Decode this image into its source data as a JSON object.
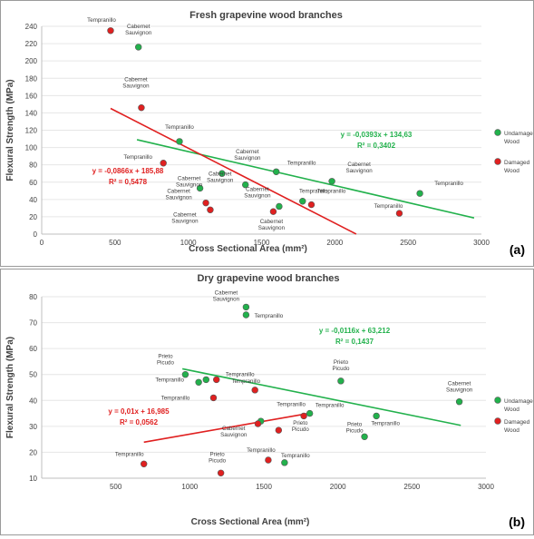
{
  "colors": {
    "undamaged": "#22b14c",
    "damaged": "#e02020",
    "axis": "#bfbfbf",
    "text": "#404040",
    "point_edge": "#555555"
  },
  "chart_data": [
    {
      "type": "scatter",
      "panel_label": "(a)",
      "title": "Fresh grapevine wood branches",
      "xlabel": "Cross Sectional Area (mm²)",
      "ylabel": "Flexural Strength (MPa)",
      "xlim": [
        0,
        3000
      ],
      "ylim": [
        0,
        240
      ],
      "xticks": [
        "0",
        "500",
        "1000",
        "1500",
        "2000",
        "2500",
        "3000"
      ],
      "yticks": [
        "0",
        "20",
        "40",
        "60",
        "80",
        "100",
        "120",
        "140",
        "160",
        "180",
        "200",
        "220",
        "240"
      ],
      "legend": [
        {
          "label": "Undamaged Wood",
          "color": "#22b14c"
        },
        {
          "label": "Damaged Wood",
          "color": "#e02020"
        }
      ],
      "legend_position": "right",
      "series": [
        {
          "name": "Undamaged Wood",
          "color": "#22b14c",
          "points": [
            {
              "x": 660,
              "y": 216,
              "label": "Cabernet Sauvignon"
            },
            {
              "x": 940,
              "y": 107,
              "label": "Tempranillo"
            },
            {
              "x": 1230,
              "y": 70,
              "label": "Cabernet Sauvignon"
            },
            {
              "x": 1080,
              "y": 53,
              "label": "Cabernet Sauvignon"
            },
            {
              "x": 1390,
              "y": 57,
              "label": "Cabernet Sauvignon"
            },
            {
              "x": 1600,
              "y": 72,
              "label": "Tempranillo"
            },
            {
              "x": 1980,
              "y": 61,
              "label": "Cabernet Sauvignon"
            },
            {
              "x": 1620,
              "y": 32,
              "label": "Cabernet Sauvignon"
            },
            {
              "x": 1780,
              "y": 38,
              "label": "Tempranillo"
            },
            {
              "x": 2580,
              "y": 47,
              "label": "Tempranillo"
            }
          ],
          "trendline": {
            "equation": "y = -0,0393x + 134,63",
            "r2": "R² = 0,3402",
            "slope": -0.0393,
            "intercept": 134.63,
            "x_range": [
              650,
              2950
            ]
          }
        },
        {
          "name": "Damaged Wood",
          "color": "#e02020",
          "points": [
            {
              "x": 470,
              "y": 235,
              "label": "Tempranillo"
            },
            {
              "x": 680,
              "y": 146,
              "label": "Cabernet Sauvignon"
            },
            {
              "x": 830,
              "y": 82,
              "label": "Tempranillo"
            },
            {
              "x": 1120,
              "y": 36,
              "label": "Cabernet Sauvignon"
            },
            {
              "x": 1150,
              "y": 28,
              "label": "Cabernet Sauvignon"
            },
            {
              "x": 1580,
              "y": 26,
              "label": "Cabernet Sauvignon"
            },
            {
              "x": 1840,
              "y": 34,
              "label": "Tempranillo"
            },
            {
              "x": 2440,
              "y": 24,
              "label": "Tempranillo"
            }
          ],
          "trendline": {
            "equation": "y = -0,0866x + 185,88",
            "r2": "R² = 0,5478",
            "slope": -0.0866,
            "intercept": 185.88,
            "x_range": [
              470,
              2146
            ]
          }
        }
      ]
    },
    {
      "type": "scatter",
      "panel_label": "(b)",
      "title": "Dry grapevine wood branches",
      "xlabel": "Cross Sectional Area (mm²)",
      "ylabel": "Flexural Strength (MPa)",
      "xlim": [
        0,
        3000
      ],
      "ylim": [
        10,
        80
      ],
      "xticks": [
        "500",
        "1000",
        "1500",
        "2000",
        "2500",
        "3000"
      ],
      "yticks": [
        "10",
        "20",
        "30",
        "40",
        "50",
        "60",
        "70",
        "80"
      ],
      "legend": [
        {
          "label": "Undamaged Wood",
          "color": "#22b14c"
        },
        {
          "label": "Damaged Wood",
          "color": "#e02020"
        }
      ],
      "legend_position": "right",
      "series": [
        {
          "name": "Undamaged Wood",
          "color": "#22b14c",
          "points": [
            {
              "x": 1380,
              "y": 76,
              "label": "Cabernet Sauvignon"
            },
            {
              "x": 1380,
              "y": 73,
              "label": "Tempranillo"
            },
            {
              "x": 970,
              "y": 50,
              "label": "Prieto Picudo"
            },
            {
              "x": 1060,
              "y": 47,
              "label": "Tempranillo"
            },
            {
              "x": 1110,
              "y": 48,
              "label": ""
            },
            {
              "x": 1480,
              "y": 32,
              "label": "Cabernet Sauvignon"
            },
            {
              "x": 1810,
              "y": 35,
              "label": "Tempranillo"
            },
            {
              "x": 2020,
              "y": 47.5,
              "label": "Prieto Picudo"
            },
            {
              "x": 2180,
              "y": 26,
              "label": "Prieto Picudo"
            },
            {
              "x": 2260,
              "y": 34,
              "label": "Tempranillo"
            },
            {
              "x": 2820,
              "y": 39.5,
              "label": "Cabernet Sauvignon"
            },
            {
              "x": 1640,
              "y": 16,
              "label": "Tempranillo"
            }
          ],
          "trendline": {
            "equation": "y = -0,0116x + 63,212",
            "r2": "R² = 0,1437",
            "slope": -0.0116,
            "intercept": 63.212,
            "x_range": [
              950,
              2830
            ]
          }
        },
        {
          "name": "Damaged Wood",
          "color": "#e02020",
          "points": [
            {
              "x": 690,
              "y": 15.5,
              "label": "Tempranillo"
            },
            {
              "x": 1180,
              "y": 48,
              "label": "Tempranillo"
            },
            {
              "x": 1160,
              "y": 41,
              "label": "Tempranillo"
            },
            {
              "x": 1440,
              "y": 44,
              "label": "Tempranillo"
            },
            {
              "x": 1460,
              "y": 31,
              "label": ""
            },
            {
              "x": 1770,
              "y": 34,
              "label": "Tempranillo"
            },
            {
              "x": 1600,
              "y": 28.5,
              "label": "Prieto Picudo"
            },
            {
              "x": 1530,
              "y": 17,
              "label": "Tempranillo"
            },
            {
              "x": 1210,
              "y": 12,
              "label": "Prieto Picudo"
            }
          ],
          "trendline": {
            "equation": "y = 0,01x + 16,985",
            "r2": "R² = 0,0562",
            "slope": 0.01,
            "intercept": 16.985,
            "x_range": [
              690,
              1790
            ]
          }
        }
      ]
    }
  ]
}
